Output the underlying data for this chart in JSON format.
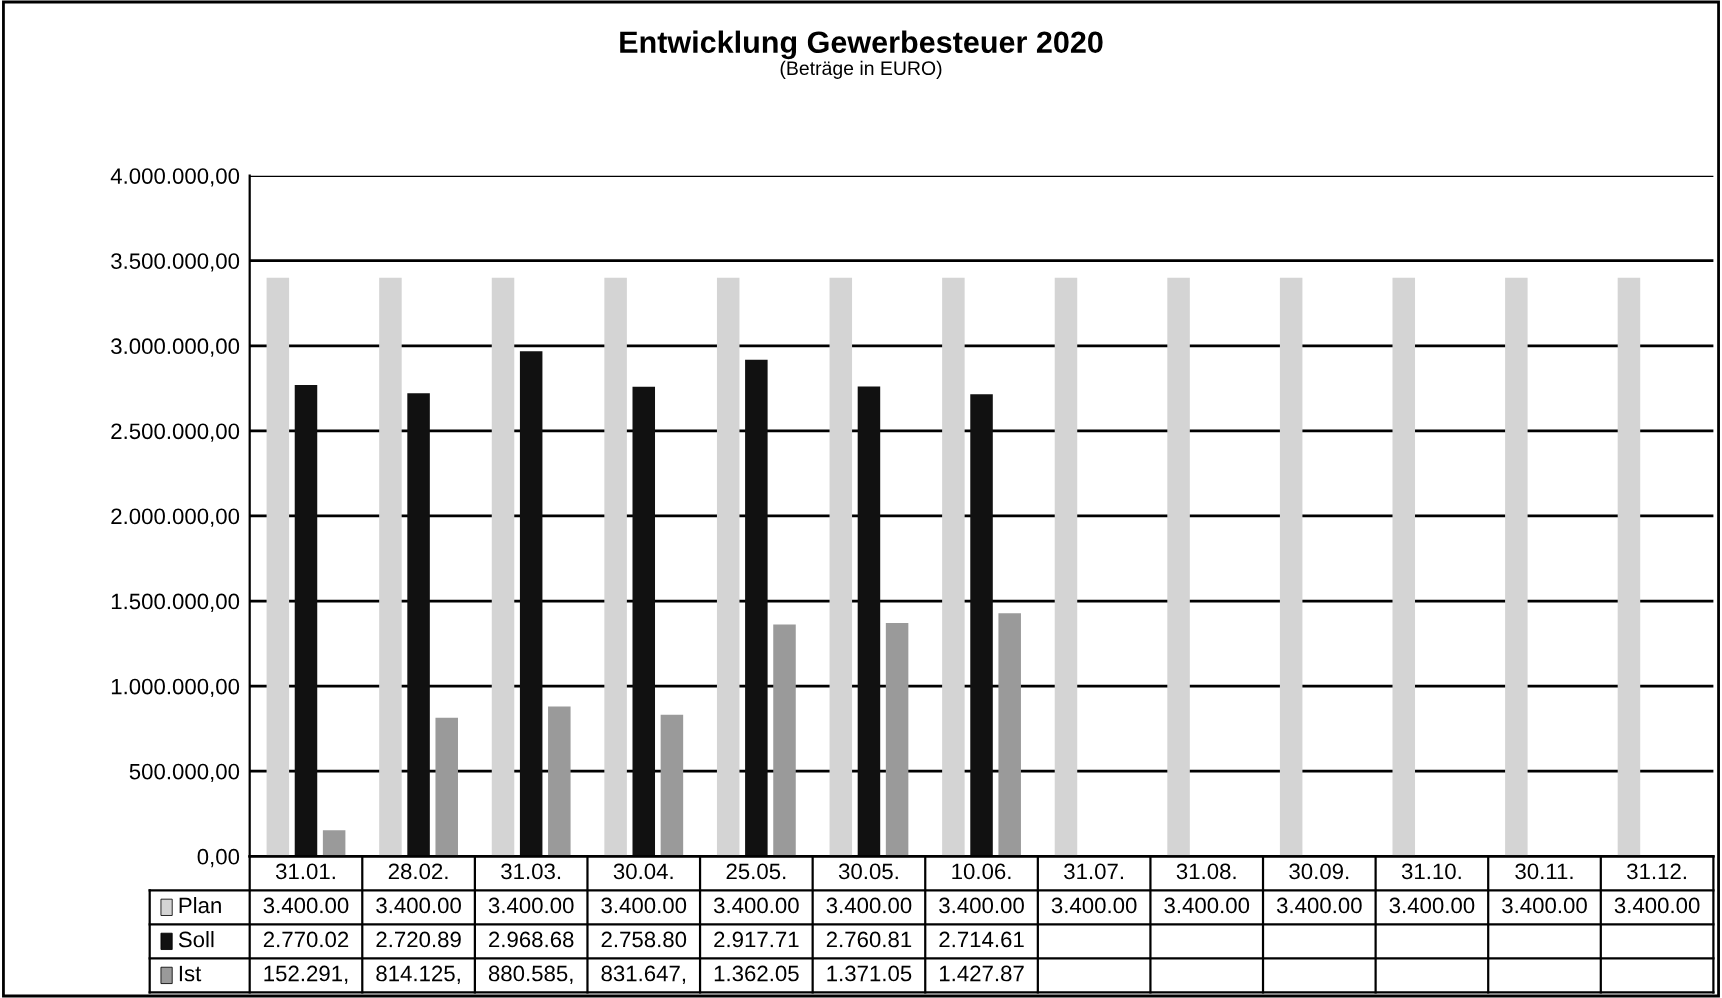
{
  "chart_data": {
    "type": "bar",
    "title": "Entwicklung Gewerbesteuer 2020",
    "subtitle": "(Beträge in EURO)",
    "categories": [
      "31.01.",
      "28.02.",
      "31.03.",
      "30.04.",
      "25.05.",
      "30.05.",
      "10.06.",
      "31.07.",
      "31.08.",
      "30.09.",
      "31.10.",
      "30.11.",
      "31.12."
    ],
    "series": [
      {
        "name": "Plan",
        "color": "#d4d4d4",
        "values": [
          3400000,
          3400000,
          3400000,
          3400000,
          3400000,
          3400000,
          3400000,
          3400000,
          3400000,
          3400000,
          3400000,
          3400000,
          3400000
        ],
        "value_labels": [
          "3.400.00",
          "3.400.00",
          "3.400.00",
          "3.400.00",
          "3.400.00",
          "3.400.00",
          "3.400.00",
          "3.400.00",
          "3.400.00",
          "3.400.00",
          "3.400.00",
          "3.400.00",
          "3.400.00"
        ]
      },
      {
        "name": "Soll",
        "color": "#111111",
        "values": [
          2770020,
          2720890,
          2968680,
          2758800,
          2917710,
          2760810,
          2714610,
          null,
          null,
          null,
          null,
          null,
          null
        ],
        "value_labels": [
          "2.770.02",
          "2.720.89",
          "2.968.68",
          "2.758.80",
          "2.917.71",
          "2.760.81",
          "2.714.61",
          null,
          null,
          null,
          null,
          null,
          null
        ]
      },
      {
        "name": "Ist",
        "color": "#9a9a9a",
        "values": [
          152291,
          814125,
          880585,
          831647,
          1362050,
          1371050,
          1427870,
          null,
          null,
          null,
          null,
          null,
          null
        ],
        "value_labels": [
          "152.291,",
          "814.125,",
          "880.585,",
          "831.647,",
          "1.362.05",
          "1.371.05",
          "1.427.87",
          null,
          null,
          null,
          null,
          null,
          null
        ]
      }
    ],
    "ylim": [
      0,
      4000000
    ],
    "yticks": [
      {
        "value": 0,
        "label": "0,00"
      },
      {
        "value": 500000,
        "label": "500.000,00"
      },
      {
        "value": 1000000,
        "label": "1.000.000,00"
      },
      {
        "value": 1500000,
        "label": "1.500.000,00"
      },
      {
        "value": 2000000,
        "label": "2.000.000,00"
      },
      {
        "value": 2500000,
        "label": "2.500.000,00"
      },
      {
        "value": 3000000,
        "label": "3.000.000,00"
      },
      {
        "value": 3500000,
        "label": "3.500.000,00"
      },
      {
        "value": 4000000,
        "label": "4.000.000,00"
      }
    ],
    "grid": "y",
    "legend": "bottom"
  }
}
